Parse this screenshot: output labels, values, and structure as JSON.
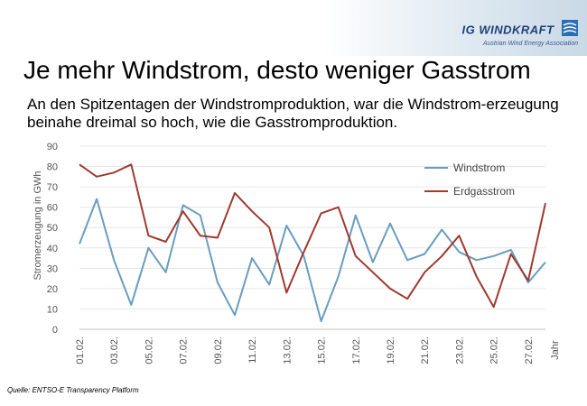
{
  "header": {
    "logo_text": "IG WINDKRAFT",
    "logo_sub": "Austrian Wind Energy Association",
    "title": "Je mehr Windstrom, desto weniger Gasstrom",
    "subtitle": "An den Spitzentagen der Windstromproduktion, war die Windstrom-erzeugung beinahe dreimal so hoch, wie die Gasstromproduktion."
  },
  "source": "Quelle: ENTSO-E Transparency Platform",
  "chart_data": {
    "type": "line",
    "ylabel": "Stromerzeugung in GWh",
    "xlabel": "Jahr",
    "ylim": [
      0,
      90
    ],
    "yticks": [
      0,
      10,
      20,
      30,
      40,
      50,
      60,
      70,
      80,
      90
    ],
    "x": [
      "01.02.",
      "02.02.",
      "03.02.",
      "04.02.",
      "05.02.",
      "06.02.",
      "07.02.",
      "08.02.",
      "09.02.",
      "10.02.",
      "11.02.",
      "12.02.",
      "13.02.",
      "14.02.",
      "15.02.",
      "16.02.",
      "17.02.",
      "18.02.",
      "19.02.",
      "20.02.",
      "21.02.",
      "22.02.",
      "23.02.",
      "24.02.",
      "25.02.",
      "26.02.",
      "27.02.",
      "28.02."
    ],
    "xtick_labels": [
      "01.02.",
      "03.02.",
      "05.02.",
      "07.02.",
      "09.02.",
      "11.02.",
      "13.02.",
      "15.02.",
      "17.02.",
      "19.02.",
      "21.02.",
      "23.02.",
      "25.02.",
      "27.02."
    ],
    "grid": true,
    "legend_position": "top-right",
    "series": [
      {
        "name": "Windstrom",
        "color": "#6a9dbf",
        "values": [
          42,
          64,
          34,
          12,
          40,
          28,
          61,
          56,
          23,
          7,
          35,
          22,
          51,
          36,
          4,
          26,
          56,
          33,
          52,
          34,
          37,
          49,
          38,
          34,
          36,
          39,
          23,
          33
        ]
      },
      {
        "name": "Erdgasstrom",
        "color": "#a0392f",
        "values": [
          81,
          75,
          77,
          81,
          46,
          43,
          58,
          46,
          45,
          67,
          58,
          50,
          18,
          38,
          57,
          60,
          36,
          28,
          20,
          15,
          28,
          36,
          46,
          26,
          11,
          37,
          24,
          62
        ]
      }
    ]
  }
}
